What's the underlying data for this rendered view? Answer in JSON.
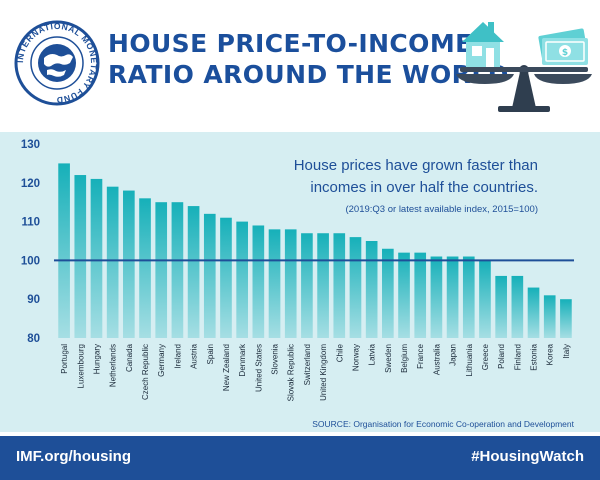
{
  "header": {
    "title_line1": "HOUSE PRICE-TO-INCOME",
    "title_line2": "RATIO AROUND THE WORLD",
    "logo_text": "INTERNATIONAL MONETARY FUND",
    "icons": [
      "imf-seal-icon",
      "house-icon",
      "money-icon",
      "balance-scale-icon"
    ]
  },
  "chart_data": {
    "type": "bar",
    "categories": [
      "Portugal",
      "Luxembourg",
      "Hungary",
      "Netherlands",
      "Canada",
      "Czech Republic",
      "Germany",
      "Ireland",
      "Austria",
      "Spain",
      "New Zealand",
      "Denmark",
      "United States",
      "Slovenia",
      "Slovak Republic",
      "Switzerland",
      "United Kingdom",
      "Chile",
      "Norway",
      "Latvia",
      "Sweden",
      "Belgium",
      "France",
      "Australia",
      "Japan",
      "Lithuania",
      "Greece",
      "Poland",
      "Finland",
      "Estonia",
      "Korea",
      "Italy"
    ],
    "values": [
      125,
      122,
      121,
      119,
      118,
      116,
      115,
      115,
      114,
      112,
      111,
      110,
      109,
      108,
      108,
      107,
      107,
      107,
      106,
      105,
      103,
      102,
      102,
      101,
      101,
      101,
      100,
      96,
      96,
      93,
      91,
      90
    ],
    "ylim": [
      80,
      130
    ],
    "yticks": [
      80,
      90,
      100,
      110,
      120,
      130
    ],
    "reference_line": 100,
    "annotation_line1": "House prices have grown faster than",
    "annotation_line2": "incomes in over half the countries.",
    "annotation_note": "(2019:Q3 or latest available index, 2015=100)",
    "source": "SOURCE: Organisation for Economic Co-operation and Development",
    "bar_color": "#19b4bc",
    "reference_color": "#1e4f98"
  },
  "footer": {
    "left": "IMF.org/housing",
    "right": "#HousingWatch"
  },
  "colors": {
    "brand_blue": "#1e4f98",
    "teal": "#19b4bc",
    "panel_bg": "#d6eef2"
  }
}
